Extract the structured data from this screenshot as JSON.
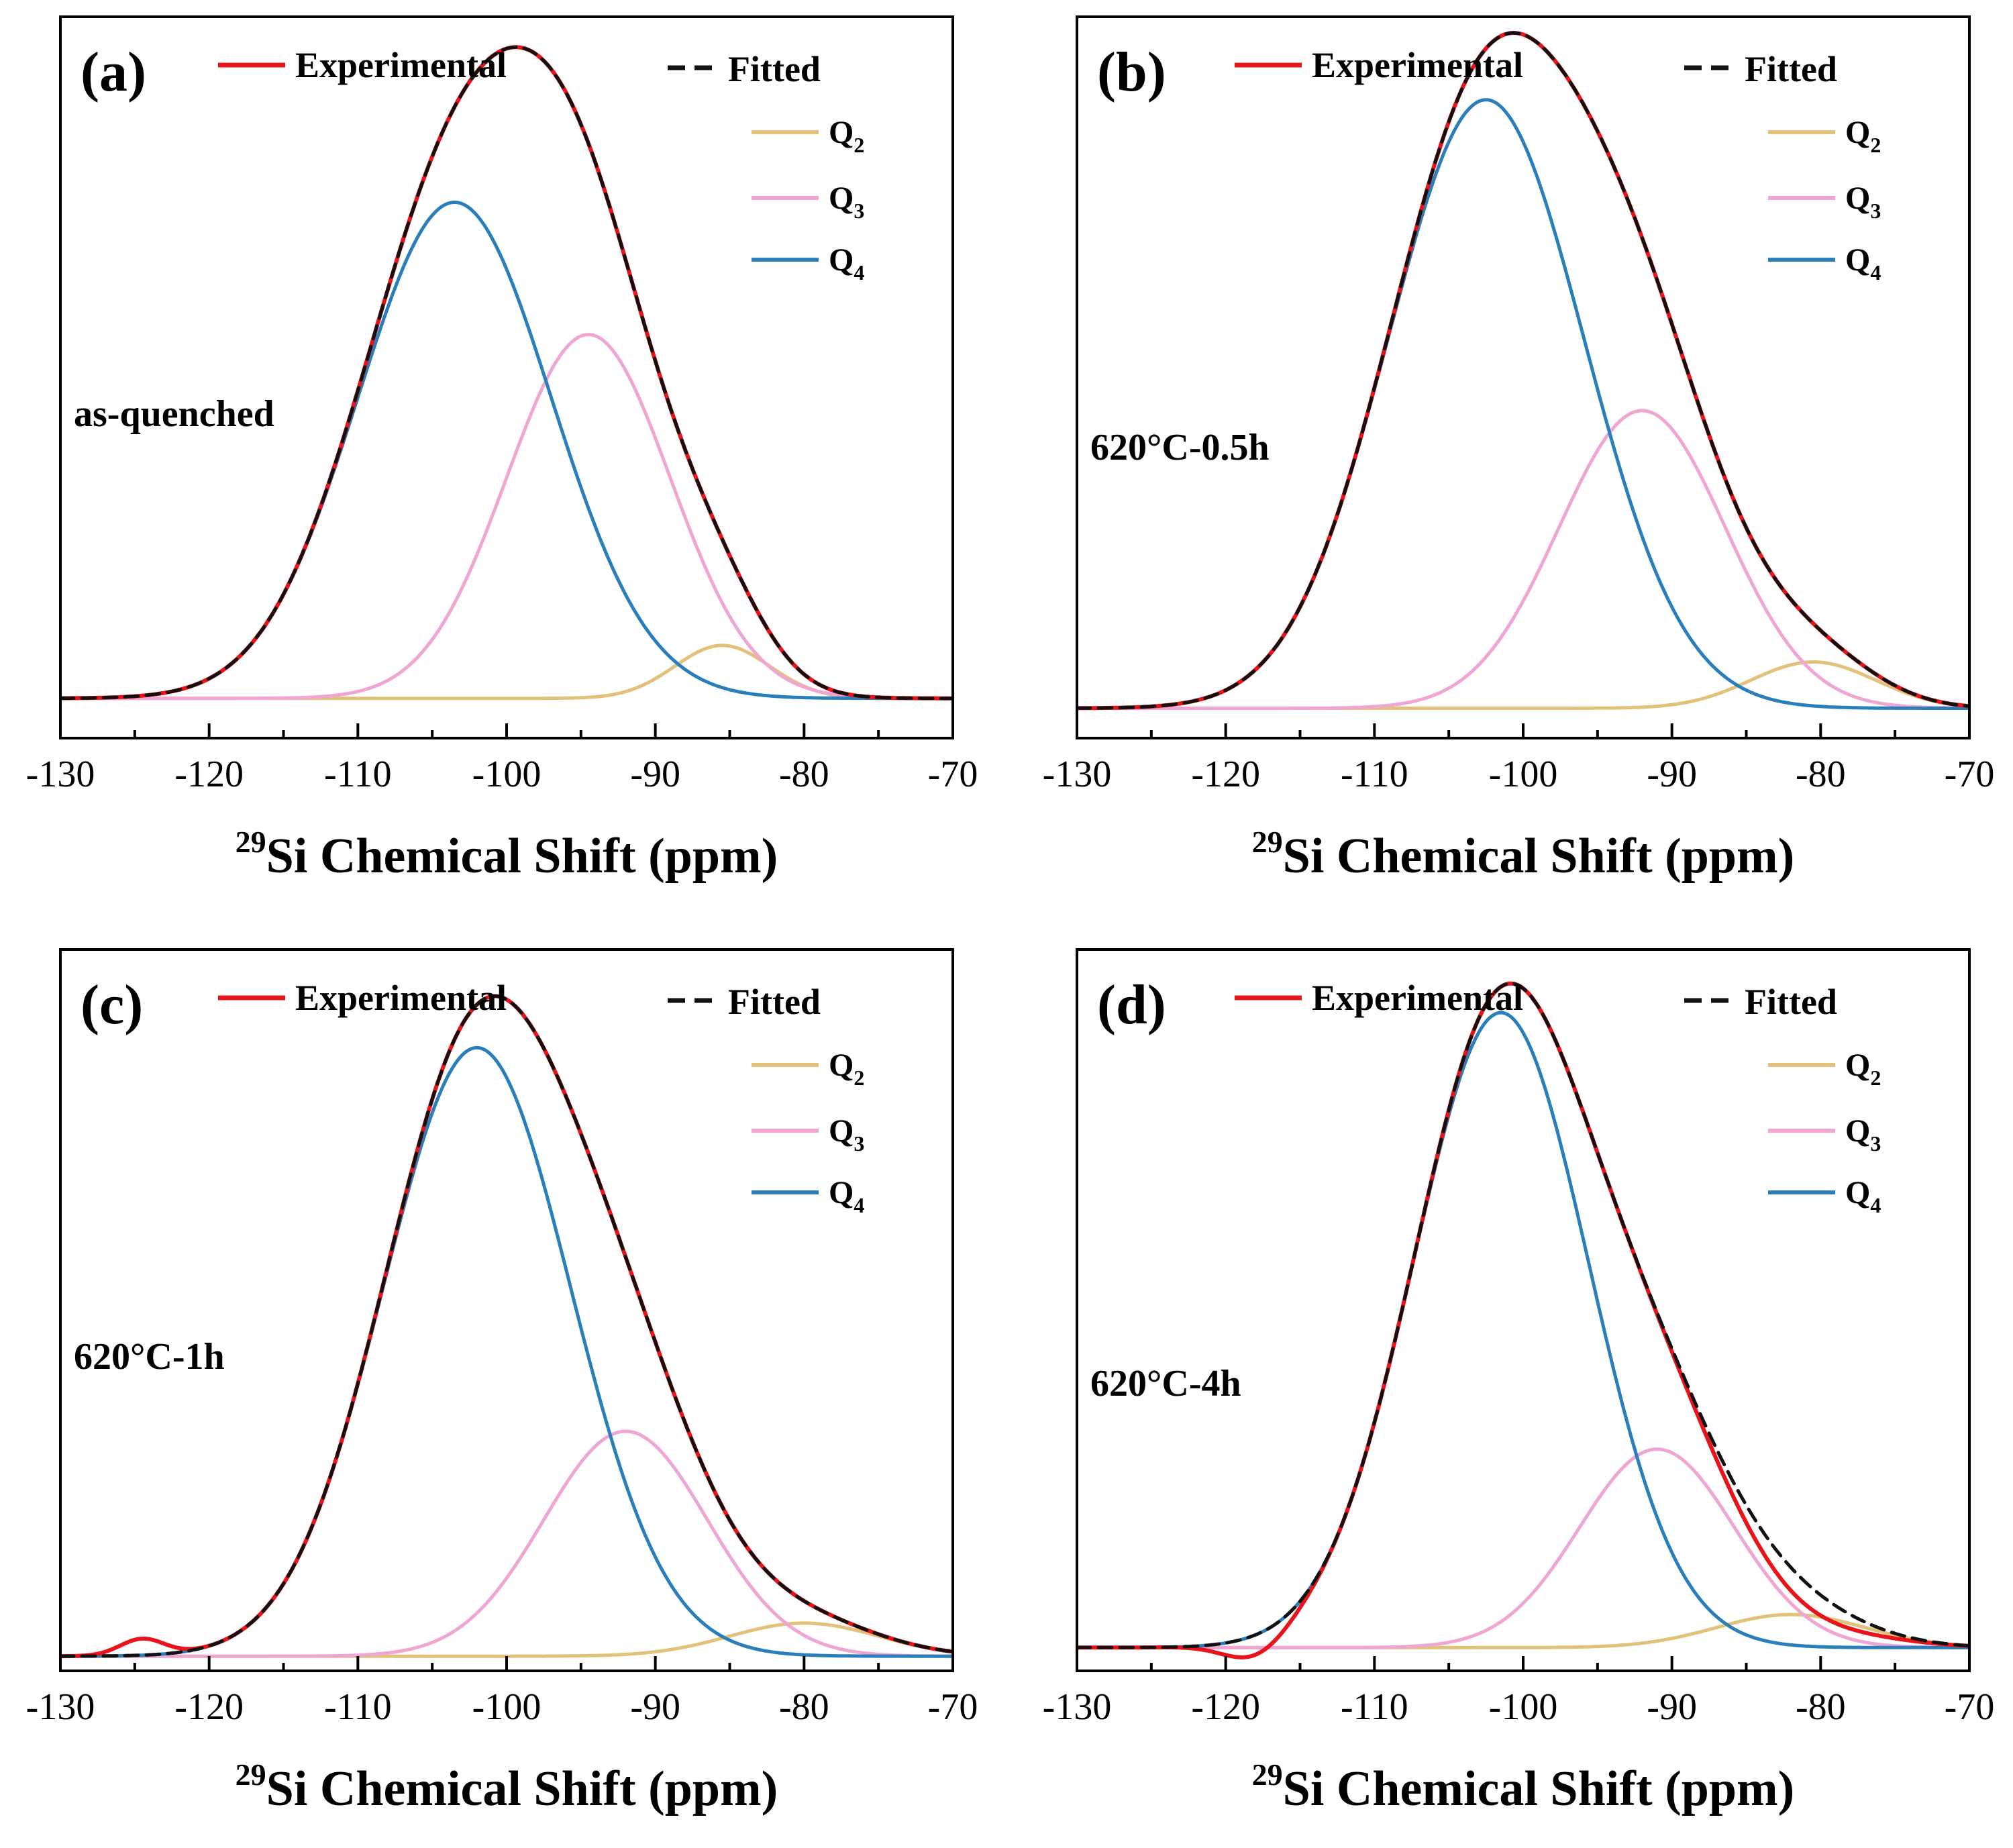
{
  "figure": {
    "legend": {
      "experimental": "Experimental",
      "fitted": "Fitted",
      "q2": "Q2",
      "q3": "Q3",
      "q4": "Q4"
    }
  },
  "colors": {
    "experimental": "#e8141b",
    "fitted": "#111111",
    "q2": "#e2c17b",
    "q3": "#f0a6d3",
    "q4": "#2a7fba"
  },
  "chart_data": [
    {
      "type": "line",
      "panel_label": "(a)",
      "sample": "as-quenched",
      "xlabel_superscript": "29",
      "xlabel": "Si Chemical Shift (ppm)",
      "xlim": [
        -130,
        -70
      ],
      "xticks": [
        "-130",
        "-120",
        "-110",
        "-100",
        "-90",
        "-80",
        "-70"
      ],
      "ylabel": "",
      "yticks": false,
      "ylim": [
        0,
        1.05
      ],
      "baseline": 0.05,
      "components": {
        "q2": {
          "center": -85.5,
          "height": 0.08,
          "sigma": 3.2
        },
        "q3": {
          "center": -94.5,
          "height": 0.55,
          "sigma": 5.5
        },
        "q4": {
          "center": -103.5,
          "height": 0.75,
          "sigma": 6.5
        }
      },
      "experimental_deviation": [],
      "series": [
        "Experimental",
        "Fitted",
        "Q2",
        "Q3",
        "Q4"
      ]
    },
    {
      "type": "line",
      "panel_label": "(b)",
      "sample": "620°C-0.5h",
      "xlabel_superscript": "29",
      "xlabel": "Si Chemical Shift (ppm)",
      "xlim": [
        -130,
        -70
      ],
      "xticks": [
        "-130",
        "-120",
        "-110",
        "-100",
        "-90",
        "-80",
        "-70"
      ],
      "ylabel": "",
      "yticks": false,
      "ylim": [
        0,
        1.05
      ],
      "baseline": 0.035,
      "components": {
        "q2": {
          "center": -80.5,
          "height": 0.07,
          "sigma": 4.2
        },
        "q3": {
          "center": -92,
          "height": 0.45,
          "sigma": 5.6
        },
        "q4": {
          "center": -102.5,
          "height": 0.92,
          "sigma": 6.6
        }
      },
      "experimental_deviation": [],
      "series": [
        "Experimental",
        "Fitted",
        "Q2",
        "Q3",
        "Q4"
      ]
    },
    {
      "type": "line",
      "panel_label": "(c)",
      "sample": "620°C-1h",
      "xlabel_superscript": "29",
      "xlabel": "Si Chemical Shift (ppm)",
      "xlim": [
        -130,
        -70
      ],
      "xticks": [
        "-130",
        "-120",
        "-110",
        "-100",
        "-90",
        "-80",
        "-70"
      ],
      "ylabel": "",
      "yticks": false,
      "ylim": [
        0,
        1.05
      ],
      "baseline": 0.012,
      "components": {
        "q2": {
          "center": -80,
          "height": 0.05,
          "sigma": 5.0
        },
        "q3": {
          "center": -92,
          "height": 0.34,
          "sigma": 5.5
        },
        "q4": {
          "center": -102,
          "height": 0.92,
          "sigma": 6.3
        }
      },
      "experimental_deviation": [
        {
          "center": -124.5,
          "height": 0.025,
          "sigma": 1.5
        }
      ],
      "series": [
        "Experimental",
        "Fitted",
        "Q2",
        "Q3",
        "Q4"
      ]
    },
    {
      "type": "line",
      "panel_label": "(d)",
      "sample": "620°C-4h",
      "xlabel_superscript": "29",
      "xlabel": "Si Chemical Shift (ppm)",
      "xlim": [
        -130,
        -70
      ],
      "xticks": [
        "-130",
        "-120",
        "-110",
        "-100",
        "-90",
        "-80",
        "-70"
      ],
      "ylabel": "",
      "yticks": false,
      "ylim": [
        0,
        1.05
      ],
      "baseline": 0.025,
      "components": {
        "q2": {
          "center": -82,
          "height": 0.05,
          "sigma": 5.0
        },
        "q3": {
          "center": -91,
          "height": 0.3,
          "sigma": 5.2
        },
        "q4": {
          "center": -101.5,
          "height": 0.96,
          "sigma": 5.9
        }
      },
      "experimental_deviation": [
        {
          "center": -118,
          "height": -0.03,
          "sigma": 2.0
        },
        {
          "center": -82,
          "height": -0.035,
          "sigma": 4.0
        }
      ],
      "series": [
        "Experimental",
        "Fitted",
        "Q2",
        "Q3",
        "Q4"
      ]
    }
  ]
}
